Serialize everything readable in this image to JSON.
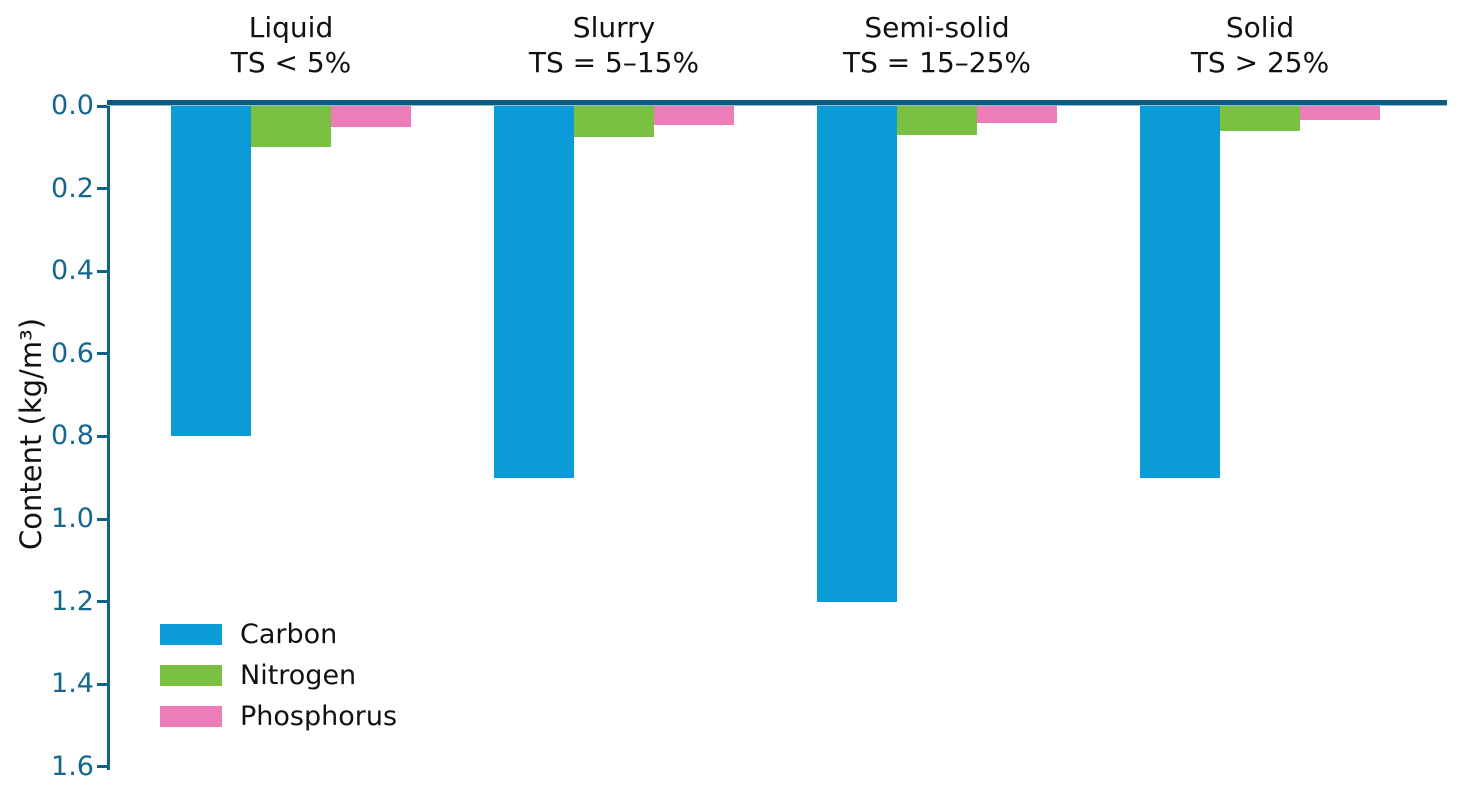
{
  "chart_data": {
    "type": "bar",
    "title": "",
    "xlabel": "",
    "ylabel": "Content (kg/m³)",
    "ylim": [
      0,
      1.6
    ],
    "yaxis_inverted": true,
    "grid": false,
    "legend_position": "lower left",
    "yticks": [
      "0.0",
      "0.2",
      "0.4",
      "0.6",
      "0.8",
      "1.0",
      "1.2",
      "1.4",
      "1.6"
    ],
    "axis_color": "#11618a",
    "zero_line_color": "#0c5a7e",
    "tick_label_color": "#15678e",
    "groups": [
      {
        "label_line1": "Liquid",
        "label_line2": "TS < 5%"
      },
      {
        "label_line1": "Slurry",
        "label_line2": "TS = 5–15%"
      },
      {
        "label_line1": "Semi-solid",
        "label_line2": "TS = 15–25%"
      },
      {
        "label_line1": "Solid",
        "label_line2": "TS > 25%"
      }
    ],
    "categories": [
      "Liquid TS < 5%",
      "Slurry TS = 5–15%",
      "Semi-solid TS = 15–25%",
      "Solid TS > 25%"
    ],
    "series": [
      {
        "name": "Carbon",
        "color": "#0b9bd7",
        "values": [
          0.8,
          0.9,
          1.2,
          0.9
        ]
      },
      {
        "name": "Nitrogen",
        "color": "#7ac142",
        "values": [
          0.1,
          0.075,
          0.07,
          0.06
        ]
      },
      {
        "name": "Phosphorus",
        "color": "#ec7db8",
        "values": [
          0.05,
          0.045,
          0.04,
          0.035
        ]
      }
    ],
    "units": "kg/m³"
  }
}
